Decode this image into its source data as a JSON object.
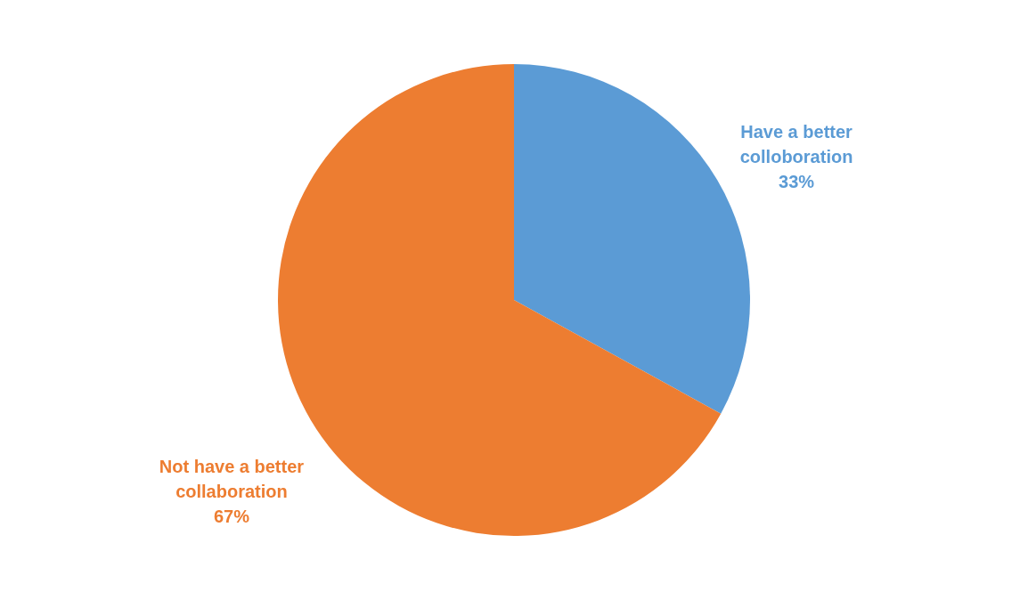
{
  "chart_data": {
    "type": "pie",
    "categories": [
      "Have a better colloboration",
      "Not have a better collaboration"
    ],
    "values": [
      33,
      67
    ],
    "colors": [
      "#5b9bd5",
      "#ed7d31"
    ],
    "value_labels": [
      "33%",
      "67%"
    ]
  }
}
